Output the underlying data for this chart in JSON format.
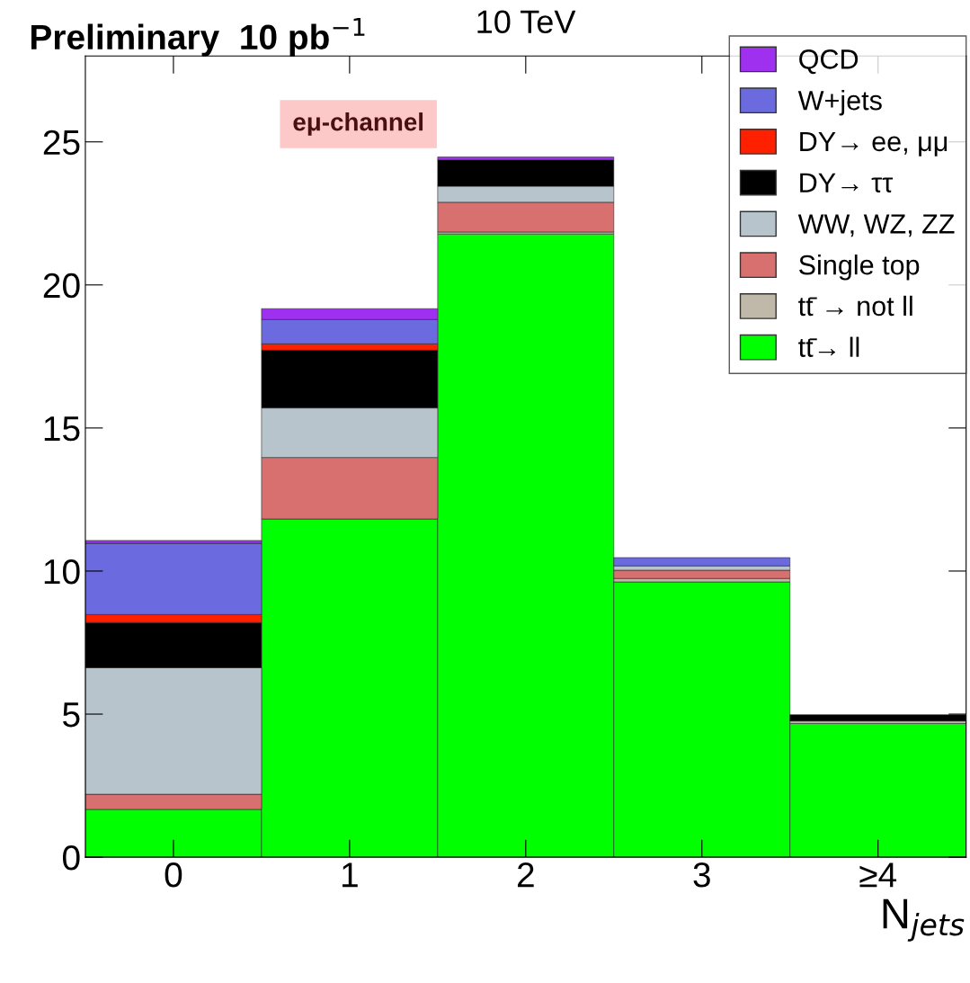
{
  "chart_data": {
    "type": "bar",
    "stacked": true,
    "title": "Preliminary  10 pb$^{−1}$",
    "xlabel": "N$_{jets}$",
    "categories": [
      "0",
      "1",
      "2",
      "3",
      "≥4"
    ],
    "series": [
      {
        "name": "tt̄→ ll",
        "color": "#00ff00",
        "values": [
          1.67,
          11.82,
          21.78,
          9.62,
          4.67
        ]
      },
      {
        "name": "tt̄ → not ll",
        "color": "#c0b8a8",
        "values": [
          0,
          0,
          0.07,
          0.12,
          0.09
        ]
      },
      {
        "name": "Single top",
        "color": "#d87070",
        "values": [
          0.53,
          2.15,
          1.04,
          0.29,
          0
        ]
      },
      {
        "name": "WW, WZ, ZZ",
        "color": "#b8c4cc",
        "values": [
          4.42,
          1.73,
          0.56,
          0.15,
          0
        ]
      },
      {
        "name": "DY→ ττ",
        "color": "#000000",
        "values": [
          1.58,
          2.02,
          0.92,
          0,
          0.22
        ]
      },
      {
        "name": "DY→ ee, μμ",
        "color": "#ff2000",
        "values": [
          0.28,
          0.22,
          0,
          0,
          0
        ]
      },
      {
        "name": "W+jets",
        "color": "#6b6bdf",
        "values": [
          2.49,
          0.85,
          0,
          0.29,
          0
        ]
      },
      {
        "name": "QCD",
        "color": "#a030f0",
        "values": [
          0.1,
          0.38,
          0.1,
          0,
          0
        ]
      }
    ],
    "ylim": [
      0,
      28
    ],
    "yticks": [
      0,
      5,
      10,
      15,
      20,
      25
    ],
    "grid": false,
    "legend": "top right",
    "annotations": [
      "10 TeV",
      "eμ-channel"
    ]
  }
}
